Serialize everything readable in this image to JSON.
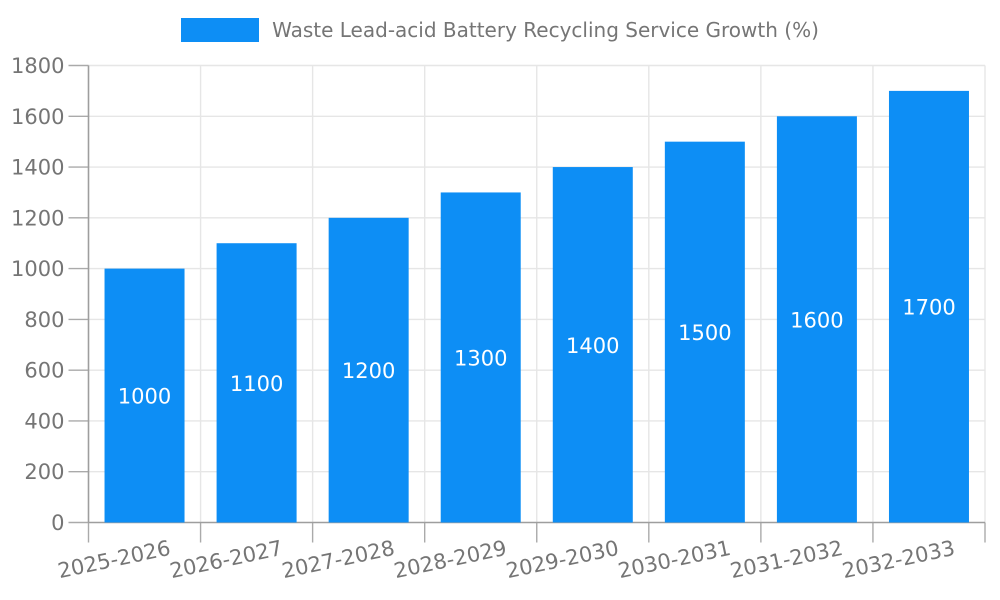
{
  "legend": {
    "label": "Waste Lead-acid Battery Recycling Service Growth (%)"
  },
  "colors": {
    "bar": "#0d8ef5",
    "bar_label": "#ffffff",
    "axis": "#9e9e9e",
    "tick": "#aaaaaa",
    "grid": "#e6e6e6",
    "text": "#757575",
    "background": "#ffffff"
  },
  "chart_data": {
    "type": "bar",
    "title": "Waste Lead-acid Battery Recycling Service Growth (%)",
    "categories": [
      "2025-2026",
      "2026-2027",
      "2027-2028",
      "2028-2029",
      "2029-2030",
      "2030-2031",
      "2031-2032",
      "2032-2033"
    ],
    "values": [
      1000,
      1100,
      1200,
      1300,
      1400,
      1500,
      1600,
      1700
    ],
    "bar_labels": [
      "1000",
      "1100",
      "1200",
      "1300",
      "1400",
      "1500",
      "1600",
      "1700"
    ],
    "xlabel": "",
    "ylabel": "",
    "ylim": [
      0,
      1800
    ],
    "ytick_step": 200,
    "yticks": [
      0,
      200,
      400,
      600,
      800,
      1000,
      1200,
      1400,
      1600,
      1800
    ],
    "grid": true,
    "legend_position": "top",
    "x_tick_rotation_deg": -12,
    "bar_labels_inside": true
  }
}
